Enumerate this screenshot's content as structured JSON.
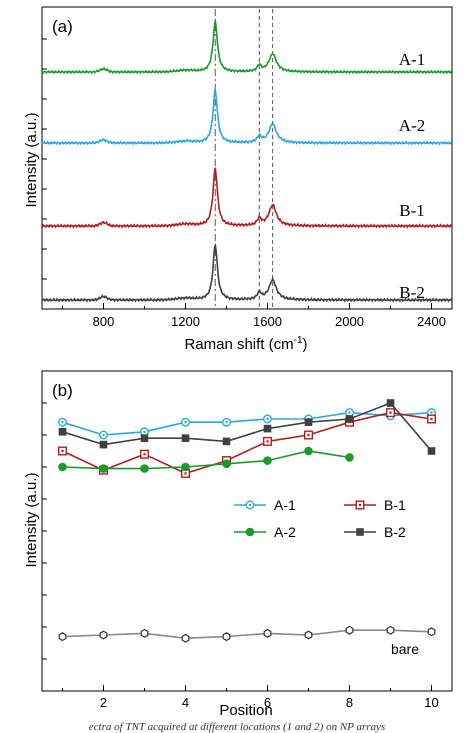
{
  "caption": "ectra of TNT acquired at different locations (1 and 2) on NP arrays",
  "colors": {
    "A-1": "#29a8e0",
    "A-2": "#1b9a2c",
    "B-1": "#b02020",
    "B-2": "#404040",
    "bare": "#888888"
  },
  "chart_data": [
    {
      "type": "line",
      "panel_label": "(a)",
      "xlabel_main": "Raman shift (cm",
      "xlabel_sup": "-1",
      "xlabel_end": ")",
      "ylabel": "Intensity (a.u.)",
      "xlim": [
        500,
        2500
      ],
      "xticks": [
        800,
        1200,
        1600,
        2000,
        2400
      ],
      "reference_lines": [
        1345,
        1560,
        1625
      ],
      "grid": false,
      "series": [
        {
          "name": "A-1",
          "color": "#1b9a2c",
          "offset": 3,
          "scale": 1.0
        },
        {
          "name": "A-2",
          "color": "#29a8e0",
          "offset": 2,
          "scale": 1.05
        },
        {
          "name": "B-1",
          "color": "#b02020",
          "offset": 1,
          "scale": 1.15
        },
        {
          "name": "B-2",
          "color": "#404040",
          "offset": 0,
          "scale": 1.1
        }
      ]
    },
    {
      "type": "line",
      "panel_label": "(b)",
      "xlabel": "Position",
      "ylabel": "Intensity (a.u.)",
      "xlim": [
        0.5,
        10.5
      ],
      "ylim": [
        0,
        100
      ],
      "xticks": [
        2,
        4,
        6,
        8,
        10
      ],
      "legend_position": "center-right",
      "series": [
        {
          "name": "A-1",
          "marker": "open-circle",
          "color": "#29a8e0",
          "x": [
            1,
            2,
            3,
            4,
            5,
            6,
            7,
            8,
            9,
            10
          ],
          "y": [
            84,
            80,
            81,
            84,
            84,
            85,
            85,
            87,
            86,
            87
          ]
        },
        {
          "name": "B-1",
          "marker": "open-square",
          "color": "#b02020",
          "x": [
            1,
            2,
            3,
            4,
            5,
            6,
            7,
            8,
            9,
            10
          ],
          "y": [
            75,
            69,
            74,
            68,
            72,
            78,
            80,
            84,
            87,
            85
          ]
        },
        {
          "name": "A-2",
          "marker": "filled-circle",
          "color": "#1b9a2c",
          "x": [
            1,
            2,
            3,
            4,
            5,
            6,
            7,
            8
          ],
          "y": [
            70,
            69.5,
            69.5,
            70,
            71,
            72,
            75,
            73
          ]
        },
        {
          "name": "B-2",
          "marker": "filled-square",
          "color": "#404040",
          "x": [
            1,
            2,
            3,
            4,
            5,
            6,
            7,
            8,
            9,
            10
          ],
          "y": [
            81,
            77,
            79,
            79,
            78,
            82,
            84,
            85,
            90,
            75
          ]
        },
        {
          "name": "bare",
          "marker": "open-hexagon",
          "color": "#888888",
          "x": [
            1,
            2,
            3,
            4,
            5,
            6,
            7,
            8,
            9,
            10
          ],
          "y": [
            17,
            17.5,
            18,
            16.5,
            17,
            18,
            17.5,
            19,
            19,
            18.5
          ]
        }
      ]
    }
  ]
}
